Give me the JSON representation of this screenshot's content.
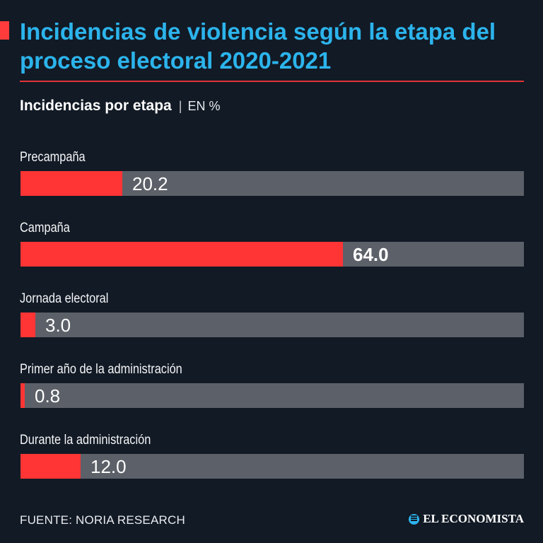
{
  "header": {
    "title": "Incidencias de violencia según la etapa del proceso electoral 2020-2021",
    "subtitle": "Incidencias por etapa",
    "separator": "|",
    "unit": "EN %"
  },
  "colors": {
    "background": "#121a25",
    "title": "#2cb4ec",
    "bar_fill": "#ff3535",
    "bar_track": "#5c6068",
    "rule": "#e3343a"
  },
  "chart_data": {
    "type": "bar",
    "orientation": "horizontal",
    "title": "Incidencias de violencia según la etapa del proceso electoral 2020-2021",
    "subtitle": "Incidencias por etapa",
    "unit": "EN %",
    "categories": [
      "Precampaña",
      "Campaña",
      "Jornada electoral",
      "Primer año de la administración",
      "Durante la administración"
    ],
    "values": [
      20.2,
      64.0,
      3.0,
      0.8,
      12.0
    ],
    "value_labels": [
      "20.2",
      "64.0",
      "3.0",
      "0.8",
      "12.0"
    ],
    "highlighted_index": 1,
    "xlim": [
      0,
      100
    ]
  },
  "footer": {
    "source": "FUENTE: NORIA RESEARCH",
    "brand": "EL ECONOMISTA",
    "brand_icon": "el-economista-logo-icon"
  }
}
